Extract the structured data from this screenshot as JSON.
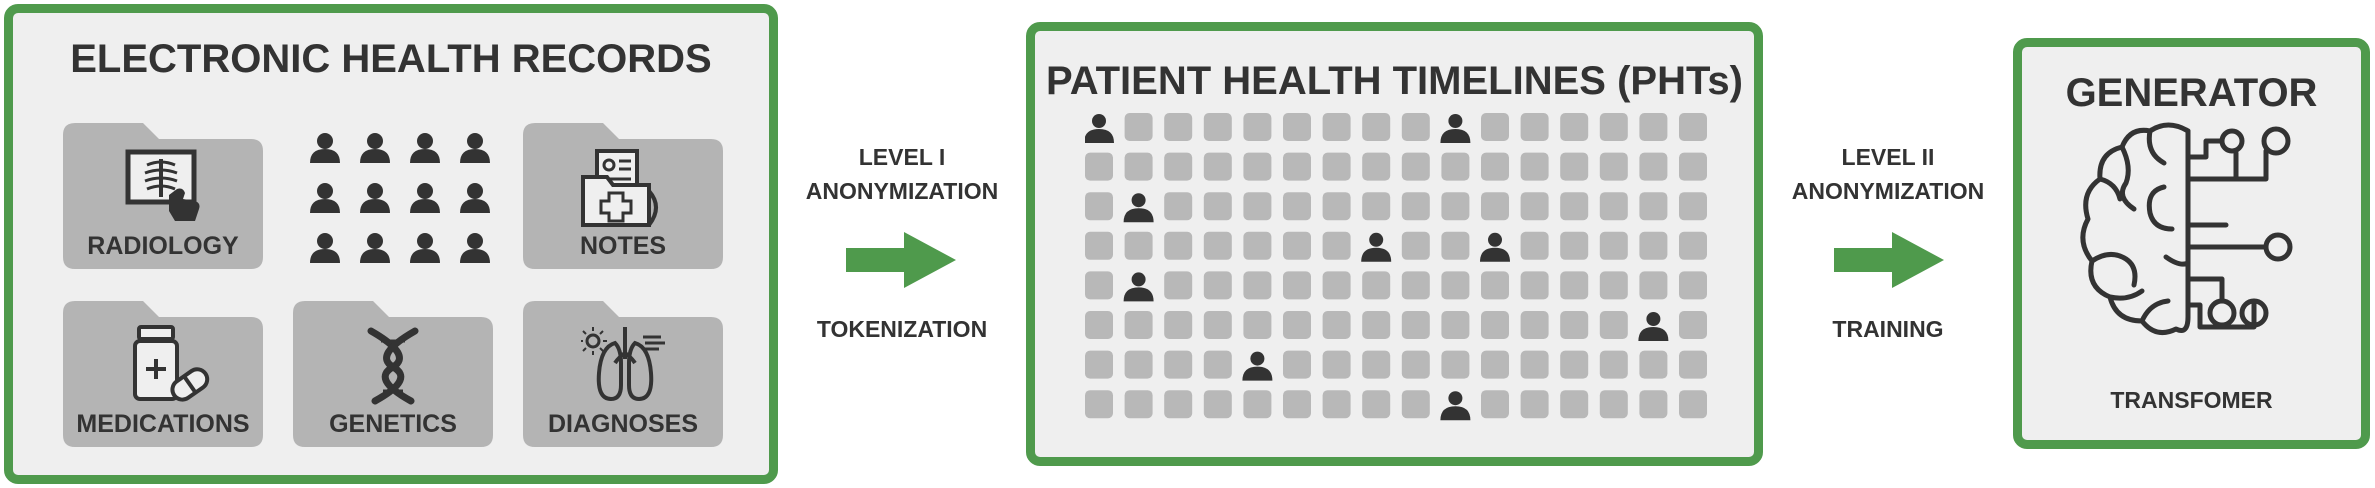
{
  "ehr": {
    "title": "ELECTRONIC HEALTH RECORDS",
    "folders": {
      "radiology": "RADIOLOGY",
      "notes": "NOTES",
      "medications": "MEDICATIONS",
      "genetics": "GENETICS",
      "diagnoses": "DIAGNOSES"
    }
  },
  "step1": {
    "line1": "LEVEL I",
    "line2": "ANONYMIZATION",
    "line3": "TOKENIZATION"
  },
  "pht": {
    "title": "PATIENT HEALTH TIMELINES (PHTs)",
    "rows": 8,
    "cols": 16,
    "patient_cells": [
      [
        0,
        0
      ],
      [
        0,
        9
      ],
      [
        2,
        1
      ],
      [
        3,
        7
      ],
      [
        3,
        10
      ],
      [
        4,
        1
      ],
      [
        5,
        14
      ],
      [
        6,
        4
      ],
      [
        7,
        9
      ]
    ]
  },
  "step2": {
    "line1": "LEVEL II",
    "line2": "ANONYMIZATION",
    "line3": "TRAINING"
  },
  "generator": {
    "title": "GENERATOR",
    "subtitle": "TRANSFOMER"
  },
  "colors": {
    "accent_green": "#4f9a4c",
    "panel_bg": "#efefef",
    "folder_gray": "#b4b4b4",
    "cell_gray": "#b8b8b8",
    "dark": "#333333"
  },
  "icons": {
    "radiology": "xray-icon",
    "notes": "medical-notes-icon",
    "medications": "pill-bottle-icon",
    "genetics": "dna-icon",
    "diagnoses": "lungs-icon",
    "people": "person-icon",
    "generator": "brain-circuit-icon",
    "arrows": "arrow-right-icon"
  }
}
